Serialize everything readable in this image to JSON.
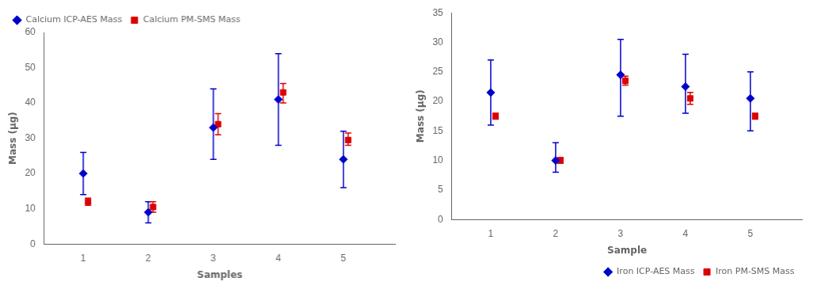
{
  "chart_data": [
    {
      "type": "scatter",
      "x": [
        1,
        2,
        3,
        4,
        5
      ],
      "xlabel": "Samples",
      "ylabel": "Mass (µg)",
      "xlim": [
        0.4,
        5.8
      ],
      "xticks": [
        1,
        2,
        3,
        4,
        5
      ],
      "ylim": [
        0,
        60
      ],
      "yticks": [
        0,
        10,
        20,
        30,
        40,
        50,
        60
      ],
      "grid": false,
      "legend": "upper left",
      "series": [
        {
          "name": "Calcium ICP-AES Mass",
          "color": "#0000cc",
          "marker": "diamond",
          "values": [
            20,
            9,
            33,
            41,
            24
          ],
          "err_low": [
            6,
            3,
            9,
            13,
            8
          ],
          "err_high": [
            6,
            3,
            11,
            13,
            8
          ]
        },
        {
          "name": "Calcium PM-SMS Mass",
          "color": "#dd0000",
          "marker": "square",
          "values": [
            12,
            10.5,
            34,
            43,
            29.5
          ],
          "err_low": [
            1,
            1.5,
            3,
            3,
            1.5
          ],
          "err_high": [
            1,
            1.5,
            3,
            2.5,
            2
          ]
        }
      ]
    },
    {
      "type": "scatter",
      "x": [
        1,
        2,
        3,
        4,
        5
      ],
      "xlabel": "Sample",
      "ylabel": "Mass (µg)",
      "xlim": [
        0.4,
        5.8
      ],
      "xticks": [
        1,
        2,
        3,
        4,
        5
      ],
      "ylim": [
        0,
        35
      ],
      "yticks": [
        0,
        5,
        10,
        15,
        20,
        25,
        30,
        35
      ],
      "grid": false,
      "legend": "lower right",
      "series": [
        {
          "name": "Iron ICP-AES Mass",
          "color": "#0000cc",
          "marker": "diamond",
          "values": [
            21.5,
            10,
            24.5,
            22.5,
            20.5
          ],
          "err_low": [
            5.5,
            2,
            7,
            4.5,
            5.5
          ],
          "err_high": [
            5.5,
            3,
            6,
            5.5,
            4.5
          ]
        },
        {
          "name": "Iron PM-SMS Mass",
          "color": "#dd0000",
          "marker": "square",
          "values": [
            17.5,
            10,
            23.5,
            20.5,
            17.5
          ],
          "err_low": [
            0.5,
            0.5,
            0.75,
            1,
            0.5
          ],
          "err_high": [
            0.5,
            0.5,
            0.75,
            1,
            0.5
          ]
        }
      ]
    }
  ]
}
